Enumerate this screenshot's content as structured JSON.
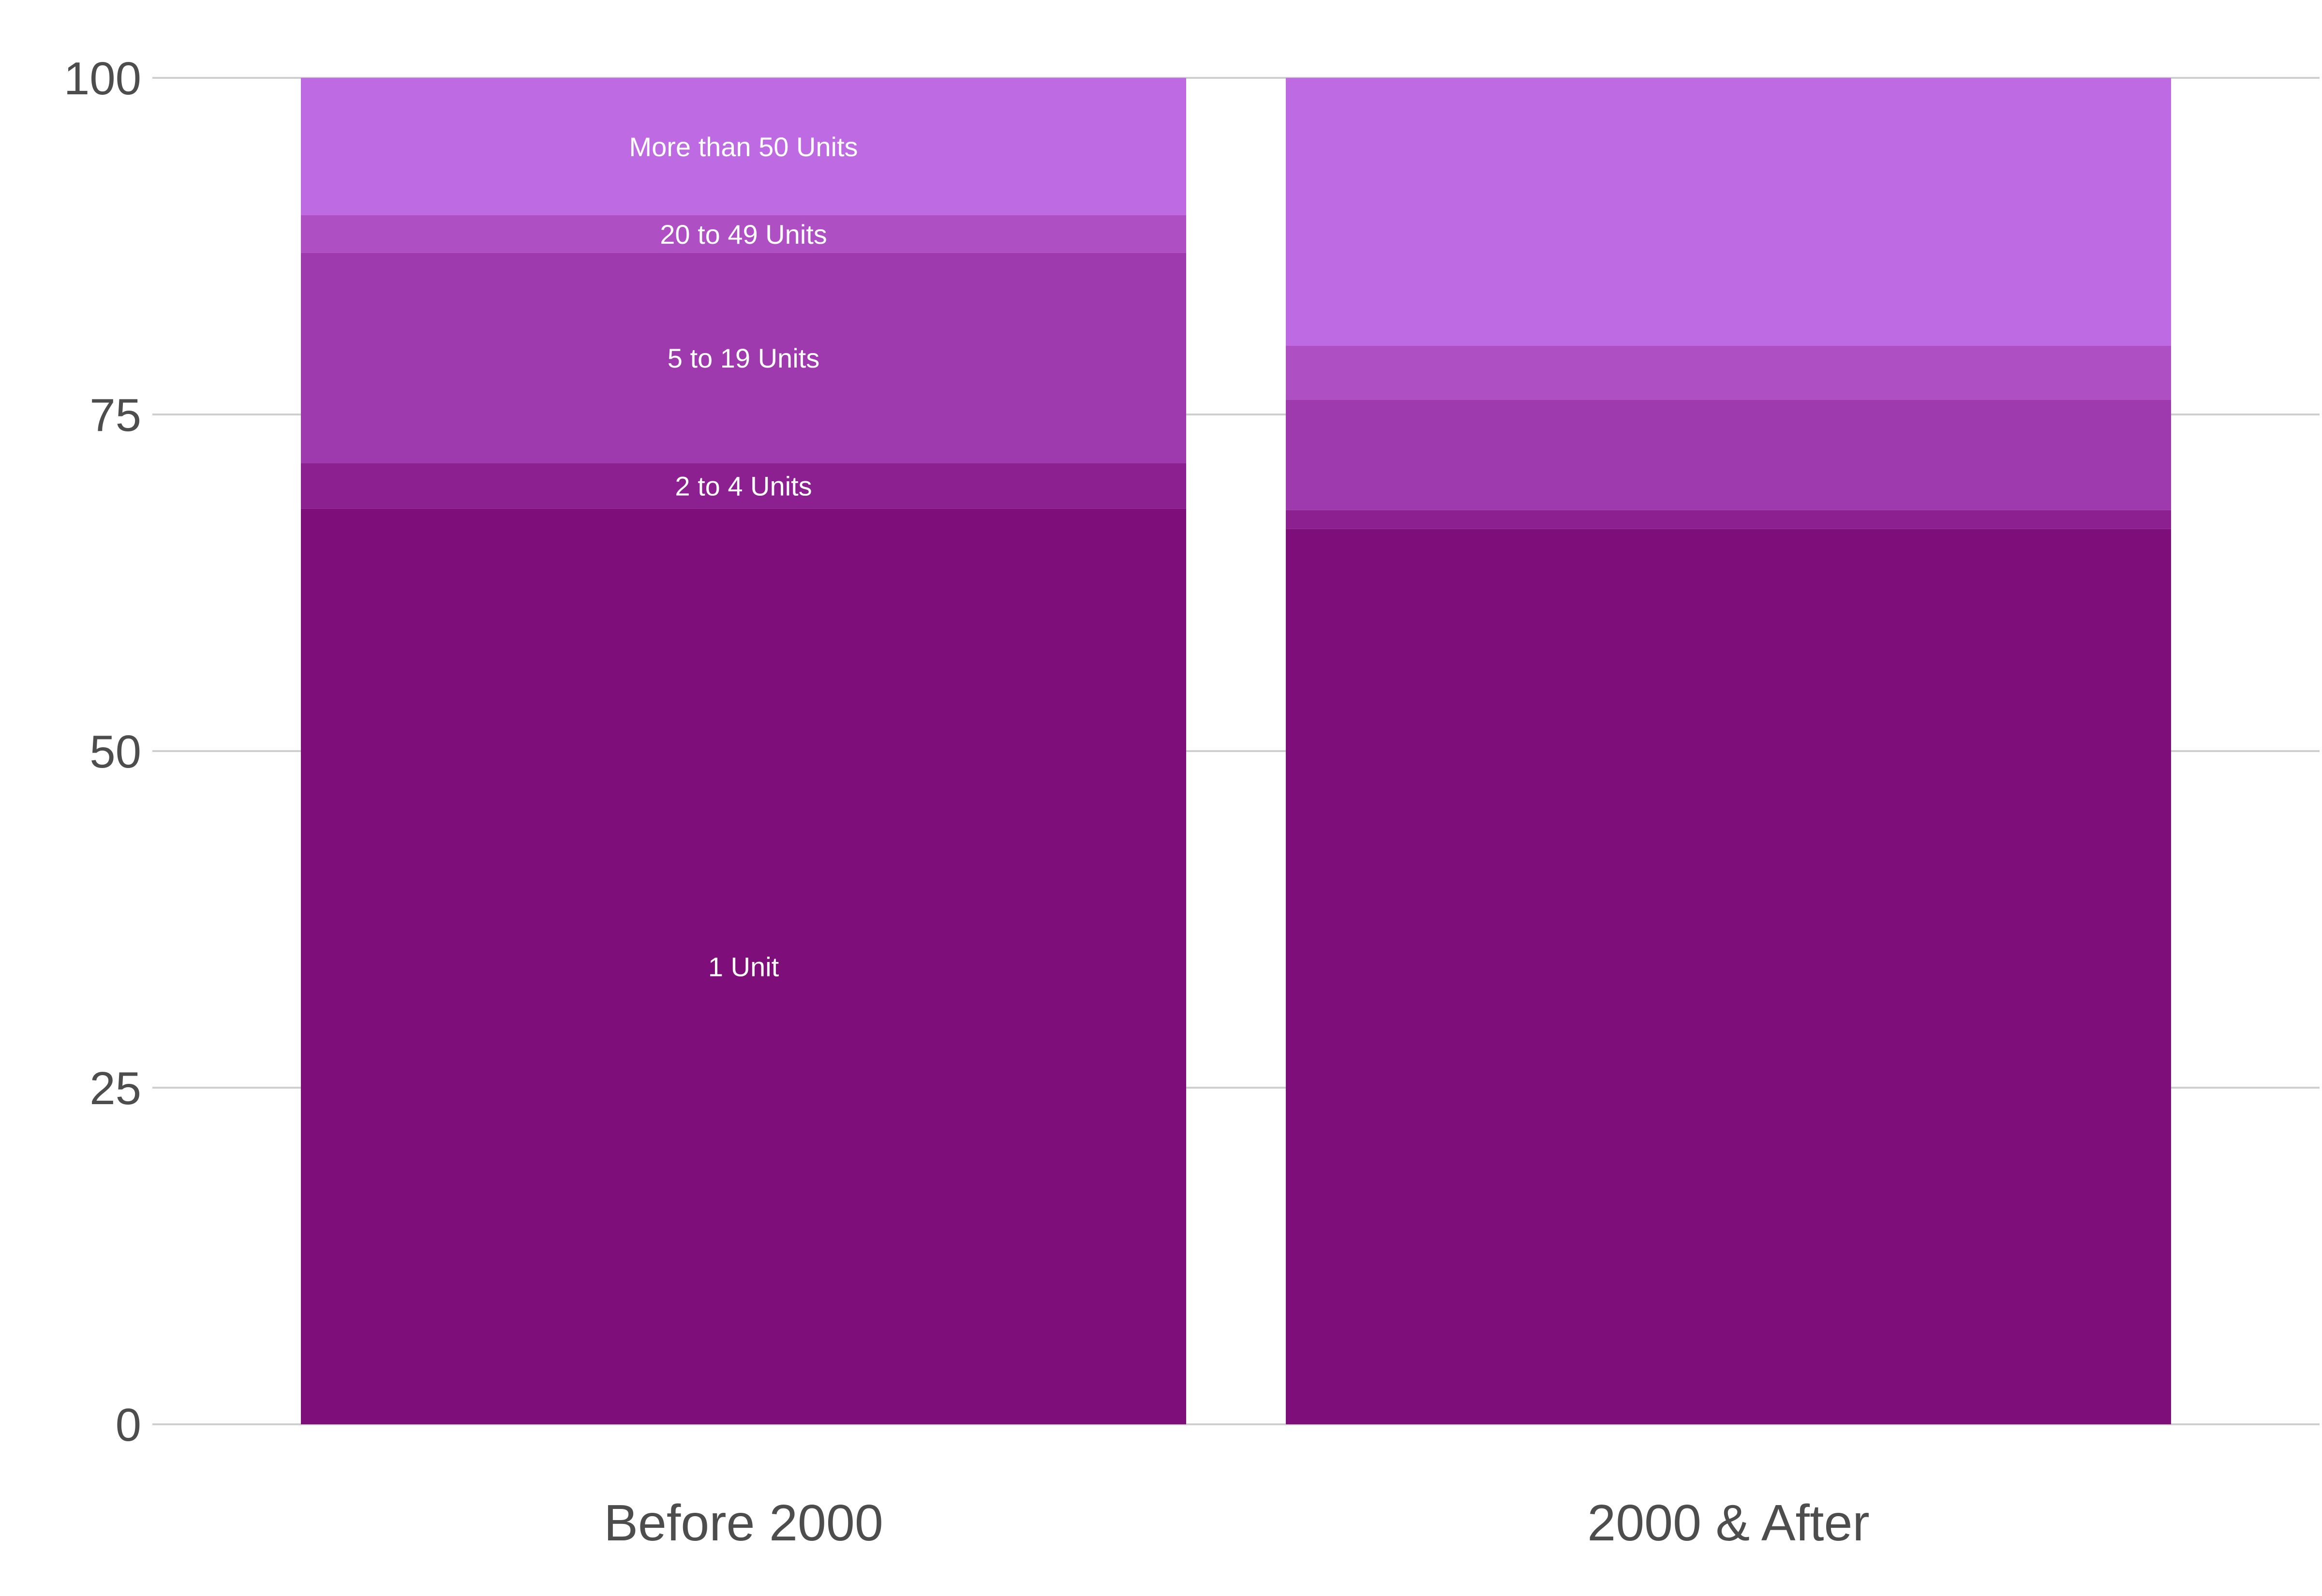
{
  "chart_data": {
    "type": "bar",
    "stacked": true,
    "categories": [
      "Before 2000",
      "2000 & After"
    ],
    "series": [
      {
        "name": "1 Unit",
        "color": "#7e0f7a",
        "values": [
          68.0,
          66.5
        ]
      },
      {
        "name": "2 to 4 Units",
        "color": "#8c2090",
        "values": [
          3.4,
          1.4
        ]
      },
      {
        "name": "5 to 19 Units",
        "color": "#9e3aad",
        "values": [
          15.6,
          8.2
        ]
      },
      {
        "name": "20 to 49 Units",
        "color": "#ae4fc4",
        "values": [
          2.8,
          4.0
        ]
      },
      {
        "name": "More than 50 Units",
        "color": "#bd6ae3",
        "values": [
          10.2,
          19.9
        ]
      }
    ],
    "labeled_category": "Before 2000",
    "ylim": [
      0,
      100
    ],
    "yticks": [
      0,
      25,
      50,
      75,
      100
    ],
    "ytick_labels": [
      "0",
      "25",
      "50",
      "75",
      "100"
    ],
    "grid": true,
    "legend": "none"
  }
}
